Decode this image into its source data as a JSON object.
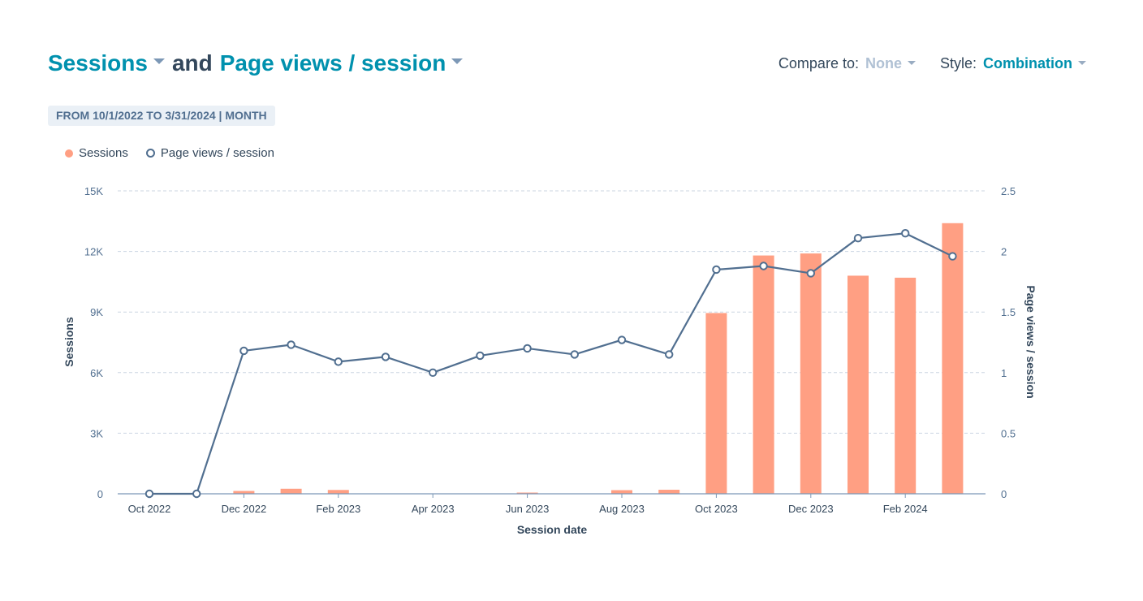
{
  "header": {
    "metric1": "Sessions",
    "connector": "and",
    "metric2": "Page views / session",
    "compare_label": "Compare to:",
    "compare_value": "None",
    "style_label": "Style:",
    "style_value": "Combination",
    "date_range": "FROM 10/1/2022 TO 3/31/2024 | MONTH"
  },
  "colors": {
    "accent": "#0091ae",
    "bar": "#ff9f83",
    "line": "#516f90",
    "text": "#33475b"
  },
  "chart_data": {
    "type": "combination",
    "legend": [
      "Sessions",
      "Page views / session"
    ],
    "legend_position": "top-left",
    "xlabel": "Session date",
    "x_ticks": [
      "Oct 2022",
      "Dec 2022",
      "Feb 2023",
      "Apr 2023",
      "Jun 2023",
      "Aug 2023",
      "Oct 2023",
      "Dec 2023",
      "Feb 2024"
    ],
    "categories": [
      "Oct 2022",
      "Nov 2022",
      "Dec 2022",
      "Jan 2023",
      "Feb 2023",
      "Mar 2023",
      "Apr 2023",
      "May 2023",
      "Jun 2023",
      "Jul 2023",
      "Aug 2023",
      "Sep 2023",
      "Oct 2023",
      "Nov 2023",
      "Dec 2023",
      "Jan 2024",
      "Feb 2024",
      "Mar 2024"
    ],
    "left_axis": {
      "label": "Sessions",
      "ticks": [
        "0",
        "3K",
        "6K",
        "9K",
        "12K",
        "15K"
      ],
      "ylim": [
        0,
        15000
      ]
    },
    "right_axis": {
      "label": "Page views / session",
      "ticks": [
        "0",
        "0.5",
        "1",
        "1.5",
        "2",
        "2.5"
      ],
      "ylim": [
        0,
        2.5
      ]
    },
    "grid": true,
    "series": [
      {
        "name": "Sessions",
        "type": "bar",
        "axis": "left",
        "values": [
          0,
          0,
          140,
          250,
          190,
          0,
          20,
          0,
          60,
          0,
          180,
          200,
          8950,
          11800,
          11900,
          10800,
          10700,
          13400
        ]
      },
      {
        "name": "Page views / session",
        "type": "line",
        "axis": "right",
        "values": [
          0,
          0,
          1.18,
          1.23,
          1.09,
          1.13,
          1.0,
          1.14,
          1.2,
          1.15,
          1.27,
          1.15,
          1.85,
          1.88,
          1.82,
          2.11,
          2.15,
          1.96
        ]
      }
    ]
  }
}
